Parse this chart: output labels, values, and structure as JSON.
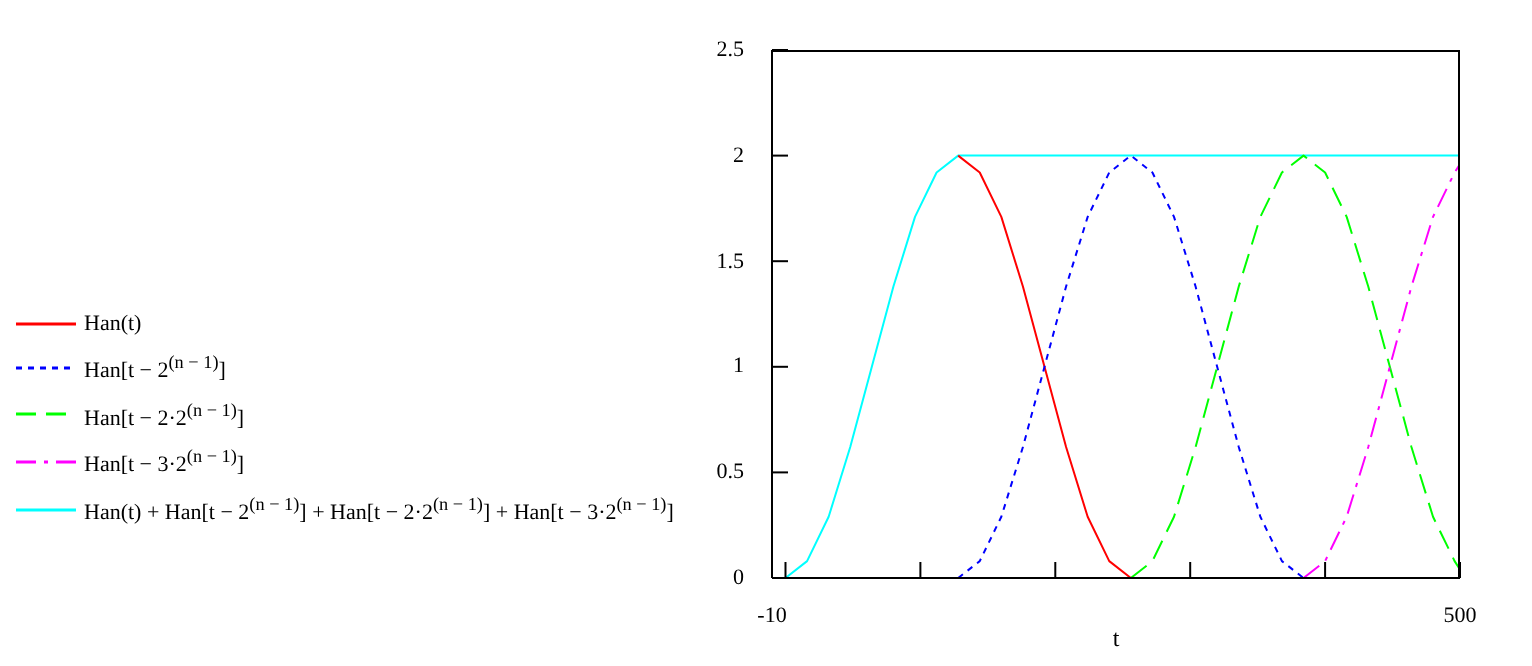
{
  "chart_data": {
    "type": "line",
    "xlabel": "t",
    "x": [
      -10,
      0,
      16,
      32,
      48,
      64,
      80,
      96,
      112,
      128,
      144,
      160,
      176,
      192,
      208,
      224,
      240,
      256,
      272,
      288,
      304,
      320,
      336,
      352,
      368,
      384,
      400,
      416,
      432,
      448,
      464,
      480,
      496,
      500
    ],
    "series": [
      {
        "name": "Han(t)",
        "color": "#ff0000",
        "line_style": "solid",
        "values": [
          null,
          null,
          null,
          null,
          null,
          null,
          null,
          null,
          null,
          2,
          1.92,
          1.71,
          1.38,
          1,
          0.62,
          0.29,
          0.08,
          0,
          null,
          null,
          null,
          null,
          null,
          null,
          null,
          null,
          null,
          null,
          null,
          null,
          null,
          null,
          null,
          null
        ]
      },
      {
        "name": "Han[t − 2$^{(n − 1)}$]",
        "color": "#0000ff",
        "line_style": "dotted",
        "values": [
          null,
          null,
          null,
          null,
          null,
          null,
          null,
          null,
          null,
          0,
          0.08,
          0.29,
          0.62,
          1,
          1.38,
          1.71,
          1.92,
          2,
          1.92,
          1.71,
          1.38,
          1,
          0.62,
          0.29,
          0.08,
          0,
          null,
          null,
          null,
          null,
          null,
          null,
          null,
          null
        ]
      },
      {
        "name": "Han[t − 2·2$^{(n − 1)}$]",
        "color": "#00ff00",
        "line_style": "dashed",
        "values": [
          null,
          null,
          null,
          null,
          null,
          null,
          null,
          null,
          null,
          null,
          null,
          null,
          null,
          null,
          null,
          null,
          null,
          0,
          0.08,
          0.29,
          0.62,
          1,
          1.38,
          1.71,
          1.92,
          2,
          1.92,
          1.71,
          1.38,
          1,
          0.62,
          0.29,
          0.08,
          0.04
        ]
      },
      {
        "name": "Han[t − 3·2$^{(n − 1)}$]",
        "color": "#ff00ff",
        "line_style": "dashdot",
        "values": [
          null,
          null,
          null,
          null,
          null,
          null,
          null,
          null,
          null,
          null,
          null,
          null,
          null,
          null,
          null,
          null,
          null,
          null,
          null,
          null,
          null,
          null,
          null,
          null,
          null,
          0,
          0.08,
          0.29,
          0.62,
          1,
          1.38,
          1.71,
          1.92,
          1.96
        ]
      },
      {
        "name": "Han(t) + Han[t − 2$^{(n − 1)}$] + Han[t − 2·2$^{(n − 1)}$] + Han[t − 3·2$^{(n − 1)}$]",
        "color": "#00ffff",
        "line_style": "solid",
        "values": [
          0,
          0,
          0.08,
          0.29,
          0.62,
          1,
          1.38,
          1.71,
          1.92,
          2,
          2,
          2,
          2,
          2,
          2,
          2,
          2,
          2,
          2,
          2,
          2,
          2,
          2,
          2,
          2,
          2,
          2,
          2,
          2,
          2,
          2,
          2,
          2,
          2
        ]
      }
    ],
    "xlim": [
      -10,
      500
    ],
    "xticks": [
      {
        "value": -10,
        "label": "-10"
      },
      {
        "value": 0,
        "label": null
      },
      {
        "value": 100,
        "label": null
      },
      {
        "value": 200,
        "label": null
      },
      {
        "value": 300,
        "label": null
      },
      {
        "value": 400,
        "label": null
      },
      500
    ],
    "ylim": [
      0,
      2.5
    ],
    "yticks": [
      0,
      0.5,
      1,
      1.5,
      2,
      2.5
    ],
    "grid": false,
    "legend": "left",
    "marker": "none"
  }
}
